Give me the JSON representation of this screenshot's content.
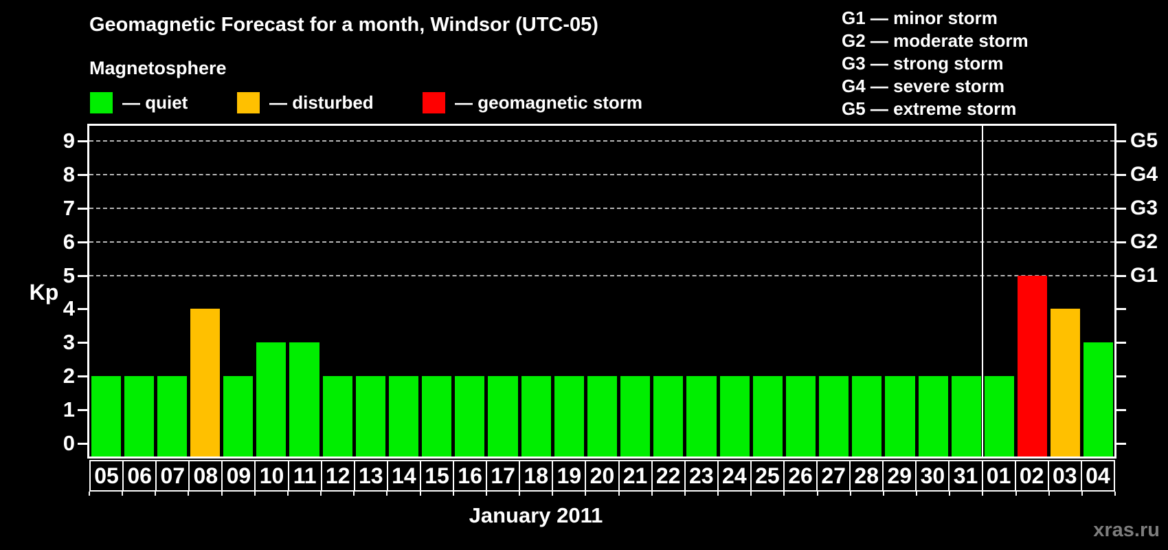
{
  "title": "Geomagnetic Forecast for a month, Windsor (UTC-05)",
  "subtitle": "Magnetosphere",
  "watermark": "xras.ru",
  "colors": {
    "quiet": "#00EE00",
    "disturbed": "#FFC000",
    "storm": "#FF0000",
    "axis": "#FFFFFF",
    "grid": "#B9B9B9",
    "background": "#000000"
  },
  "legend": [
    {
      "key": "quiet",
      "label": "— quiet"
    },
    {
      "key": "disturbed",
      "label": "— disturbed"
    },
    {
      "key": "storm",
      "label": "— geomagnetic storm"
    }
  ],
  "g_legend": [
    "G1 — minor storm",
    "G2 — moderate storm",
    "G3 — strong storm",
    "G4 — severe storm",
    "G5 — extreme storm"
  ],
  "chart_data": {
    "type": "bar",
    "title": "Geomagnetic Forecast for a month, Windsor (UTC-05)",
    "xlabel": "January 2011",
    "ylabel": "Kp",
    "ylim": [
      -0.55,
      9.5
    ],
    "yticks": [
      0,
      1,
      2,
      3,
      4,
      5,
      6,
      7,
      8,
      9
    ],
    "gridlines": [
      5,
      6,
      7,
      8,
      9
    ],
    "grid": "dashed, only at Kp 5-9",
    "legend_position": "top",
    "right_axis_labels": [
      {
        "value": 5,
        "label": "G1"
      },
      {
        "value": 6,
        "label": "G2"
      },
      {
        "value": 7,
        "label": "G3"
      },
      {
        "value": 8,
        "label": "G4"
      },
      {
        "value": 9,
        "label": "G5"
      }
    ],
    "month_separator_after_index": 26,
    "categories": [
      "05",
      "06",
      "07",
      "08",
      "09",
      "10",
      "11",
      "12",
      "13",
      "14",
      "15",
      "16",
      "17",
      "18",
      "19",
      "20",
      "21",
      "22",
      "23",
      "24",
      "25",
      "26",
      "27",
      "28",
      "29",
      "30",
      "31",
      "01",
      "02",
      "03",
      "04"
    ],
    "values": [
      2,
      2,
      2,
      4,
      2,
      3,
      3,
      2,
      2,
      2,
      2,
      2,
      2,
      2,
      2,
      2,
      2,
      2,
      2,
      2,
      2,
      2,
      2,
      2,
      2,
      2,
      2,
      2,
      5,
      4,
      3
    ],
    "statuses": [
      "quiet",
      "quiet",
      "quiet",
      "disturbed",
      "quiet",
      "quiet",
      "quiet",
      "quiet",
      "quiet",
      "quiet",
      "quiet",
      "quiet",
      "quiet",
      "quiet",
      "quiet",
      "quiet",
      "quiet",
      "quiet",
      "quiet",
      "quiet",
      "quiet",
      "quiet",
      "quiet",
      "quiet",
      "quiet",
      "quiet",
      "quiet",
      "quiet",
      "storm",
      "disturbed",
      "quiet"
    ]
  }
}
